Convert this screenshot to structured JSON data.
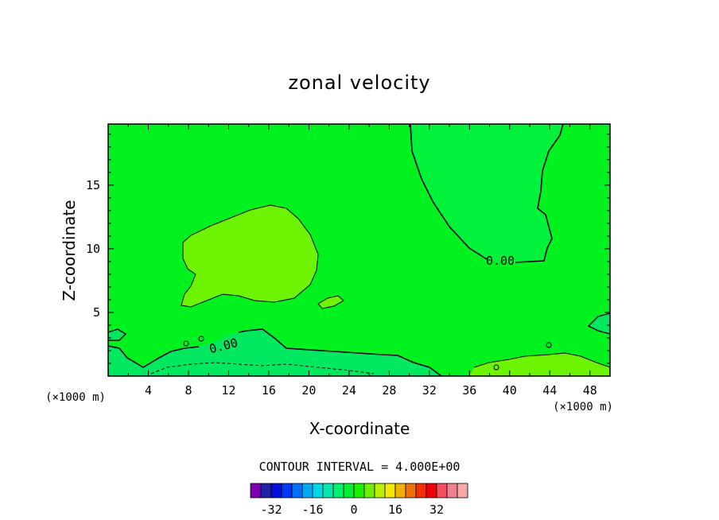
{
  "chart_data": {
    "type": "heatmap",
    "title": "zonal velocity",
    "xlabel": "X-coordinate",
    "ylabel": "Z-coordinate",
    "x_unit_left": "(×1000 m)",
    "x_unit_right": "(×1000 m)",
    "xlim": [
      0,
      50
    ],
    "ylim": [
      0,
      19.8
    ],
    "x_ticks": [
      4,
      8,
      12,
      16,
      20,
      24,
      28,
      32,
      36,
      40,
      44,
      48
    ],
    "x_tick_labels": [
      "4",
      "8",
      "12",
      "16",
      "20",
      "24",
      "28",
      "32",
      "36",
      "40",
      "44",
      "48"
    ],
    "y_ticks": [
      5,
      10,
      15
    ],
    "y_tick_labels": [
      "5",
      "10",
      "15"
    ],
    "contour_interval_text": "CONTOUR INTERVAL = 4.000E+00",
    "contour_interval": 4.0,
    "field_regions": [
      {
        "name": "background",
        "value_range": [
          0,
          4
        ],
        "color": "#00f21e"
      },
      {
        "name": "positive-lobe",
        "value_range": [
          4,
          8
        ],
        "color": "#6cf400"
      },
      {
        "name": "upper-right-negative",
        "value_range": [
          -4,
          0
        ],
        "color": "#00f23a"
      },
      {
        "name": "lower-negative-layer",
        "value_range": [
          -8,
          -4
        ],
        "color": "#00e860"
      }
    ],
    "contour_labels": [
      {
        "text": "0.00",
        "x": 39,
        "z": 9.1
      },
      {
        "text": "0.00",
        "x": 11,
        "z": 2.2
      }
    ],
    "colorbar": {
      "ticks": [
        -32,
        -16,
        0,
        16,
        32
      ],
      "tick_labels": [
        "-32",
        "-16",
        "0",
        "16",
        "32"
      ],
      "colors": [
        "#7a00b0",
        "#2020a8",
        "#0010d8",
        "#0038f8",
        "#0070f8",
        "#00a8f8",
        "#00d8e8",
        "#00e8b0",
        "#00f070",
        "#00f030",
        "#20f000",
        "#70f000",
        "#b8f000",
        "#f0e800",
        "#f0b000",
        "#f07000",
        "#f03000",
        "#f00000",
        "#f05060",
        "#f08090",
        "#f8a8a8"
      ]
    }
  }
}
